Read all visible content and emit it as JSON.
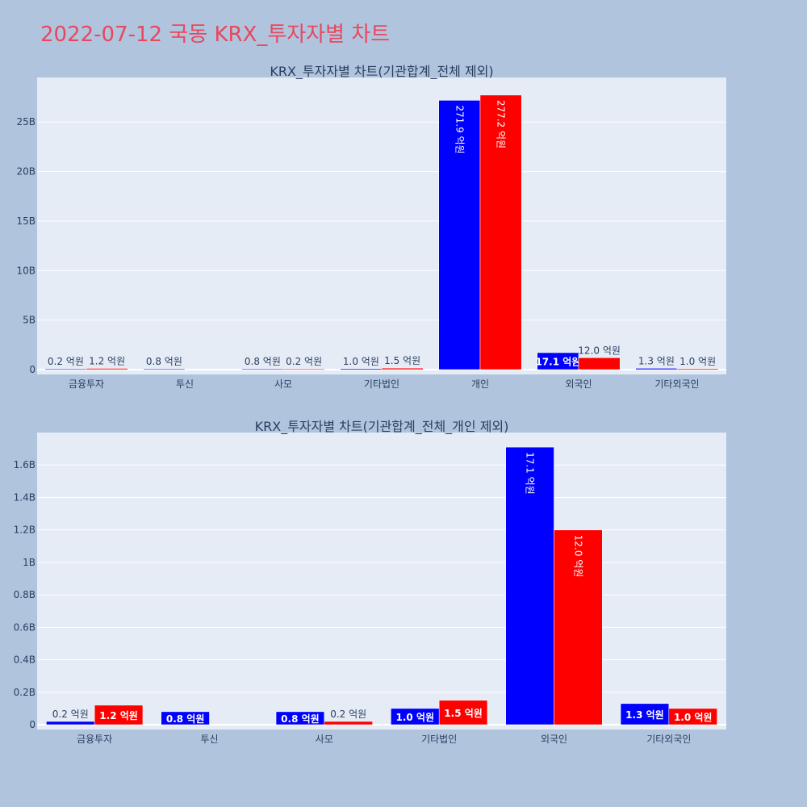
{
  "page_title": "2022-07-12 국동 KRX_투자자별 차트",
  "chart_data": [
    {
      "type": "bar",
      "title": "KRX_투자자별 차트(기관합계_전체 제외)",
      "categories": [
        "금융투자",
        "투신",
        "사모",
        "기타법인",
        "개인",
        "외국인",
        "기타외국인"
      ],
      "ylim": [
        0,
        29.5
      ],
      "y_ticks": [
        0,
        5,
        10,
        15,
        20,
        25
      ],
      "y_tick_labels": [
        "0",
        "5B",
        "10B",
        "15B",
        "20B",
        "25B"
      ],
      "grid": true,
      "series": [
        {
          "color": "#0000ff",
          "values": [
            0.02,
            0.08,
            0.08,
            0.1,
            27.19,
            1.71,
            0.13
          ],
          "labels": [
            "0.2 억원",
            "0.8 억원",
            "0.8 억원",
            "1.0 억원",
            "271.9 억원",
            "17.1 억원",
            "1.3 억원"
          ]
        },
        {
          "color": "#ff0000",
          "values": [
            0.12,
            null,
            0.02,
            0.15,
            27.72,
            1.2,
            0.1
          ],
          "labels": [
            "1.2 억원",
            "",
            "0.2 억원",
            "1.5 억원",
            "277.2 억원",
            "12.0 억원",
            "1.0 억원"
          ]
        }
      ]
    },
    {
      "type": "bar",
      "title": "KRX_투자자별 차트(기관합계_전체_개인 제외)",
      "categories": [
        "금융투자",
        "투신",
        "사모",
        "기타법인",
        "외국인",
        "기타외국인"
      ],
      "ylim": [
        0,
        1.8
      ],
      "y_ticks": [
        0,
        0.2,
        0.4,
        0.6,
        0.8,
        1.0,
        1.2,
        1.4,
        1.6
      ],
      "y_tick_labels": [
        "0",
        "0.2B",
        "0.4B",
        "0.6B",
        "0.8B",
        "1B",
        "1.2B",
        "1.4B",
        "1.6B"
      ],
      "grid": true,
      "series": [
        {
          "color": "#0000ff",
          "values": [
            0.02,
            0.08,
            0.08,
            0.1,
            1.71,
            0.13
          ],
          "labels": [
            "0.2 억원",
            "0.8 억원",
            "0.8 억원",
            "1.0 억원",
            "17.1 억원",
            "1.3 억원"
          ]
        },
        {
          "color": "#ff0000",
          "values": [
            0.12,
            null,
            0.02,
            0.15,
            1.2,
            0.1
          ],
          "labels": [
            "1.2 억원",
            "",
            "0.2 억원",
            "1.5 억원",
            "12.0 억원",
            "1.0 억원"
          ]
        }
      ]
    }
  ]
}
